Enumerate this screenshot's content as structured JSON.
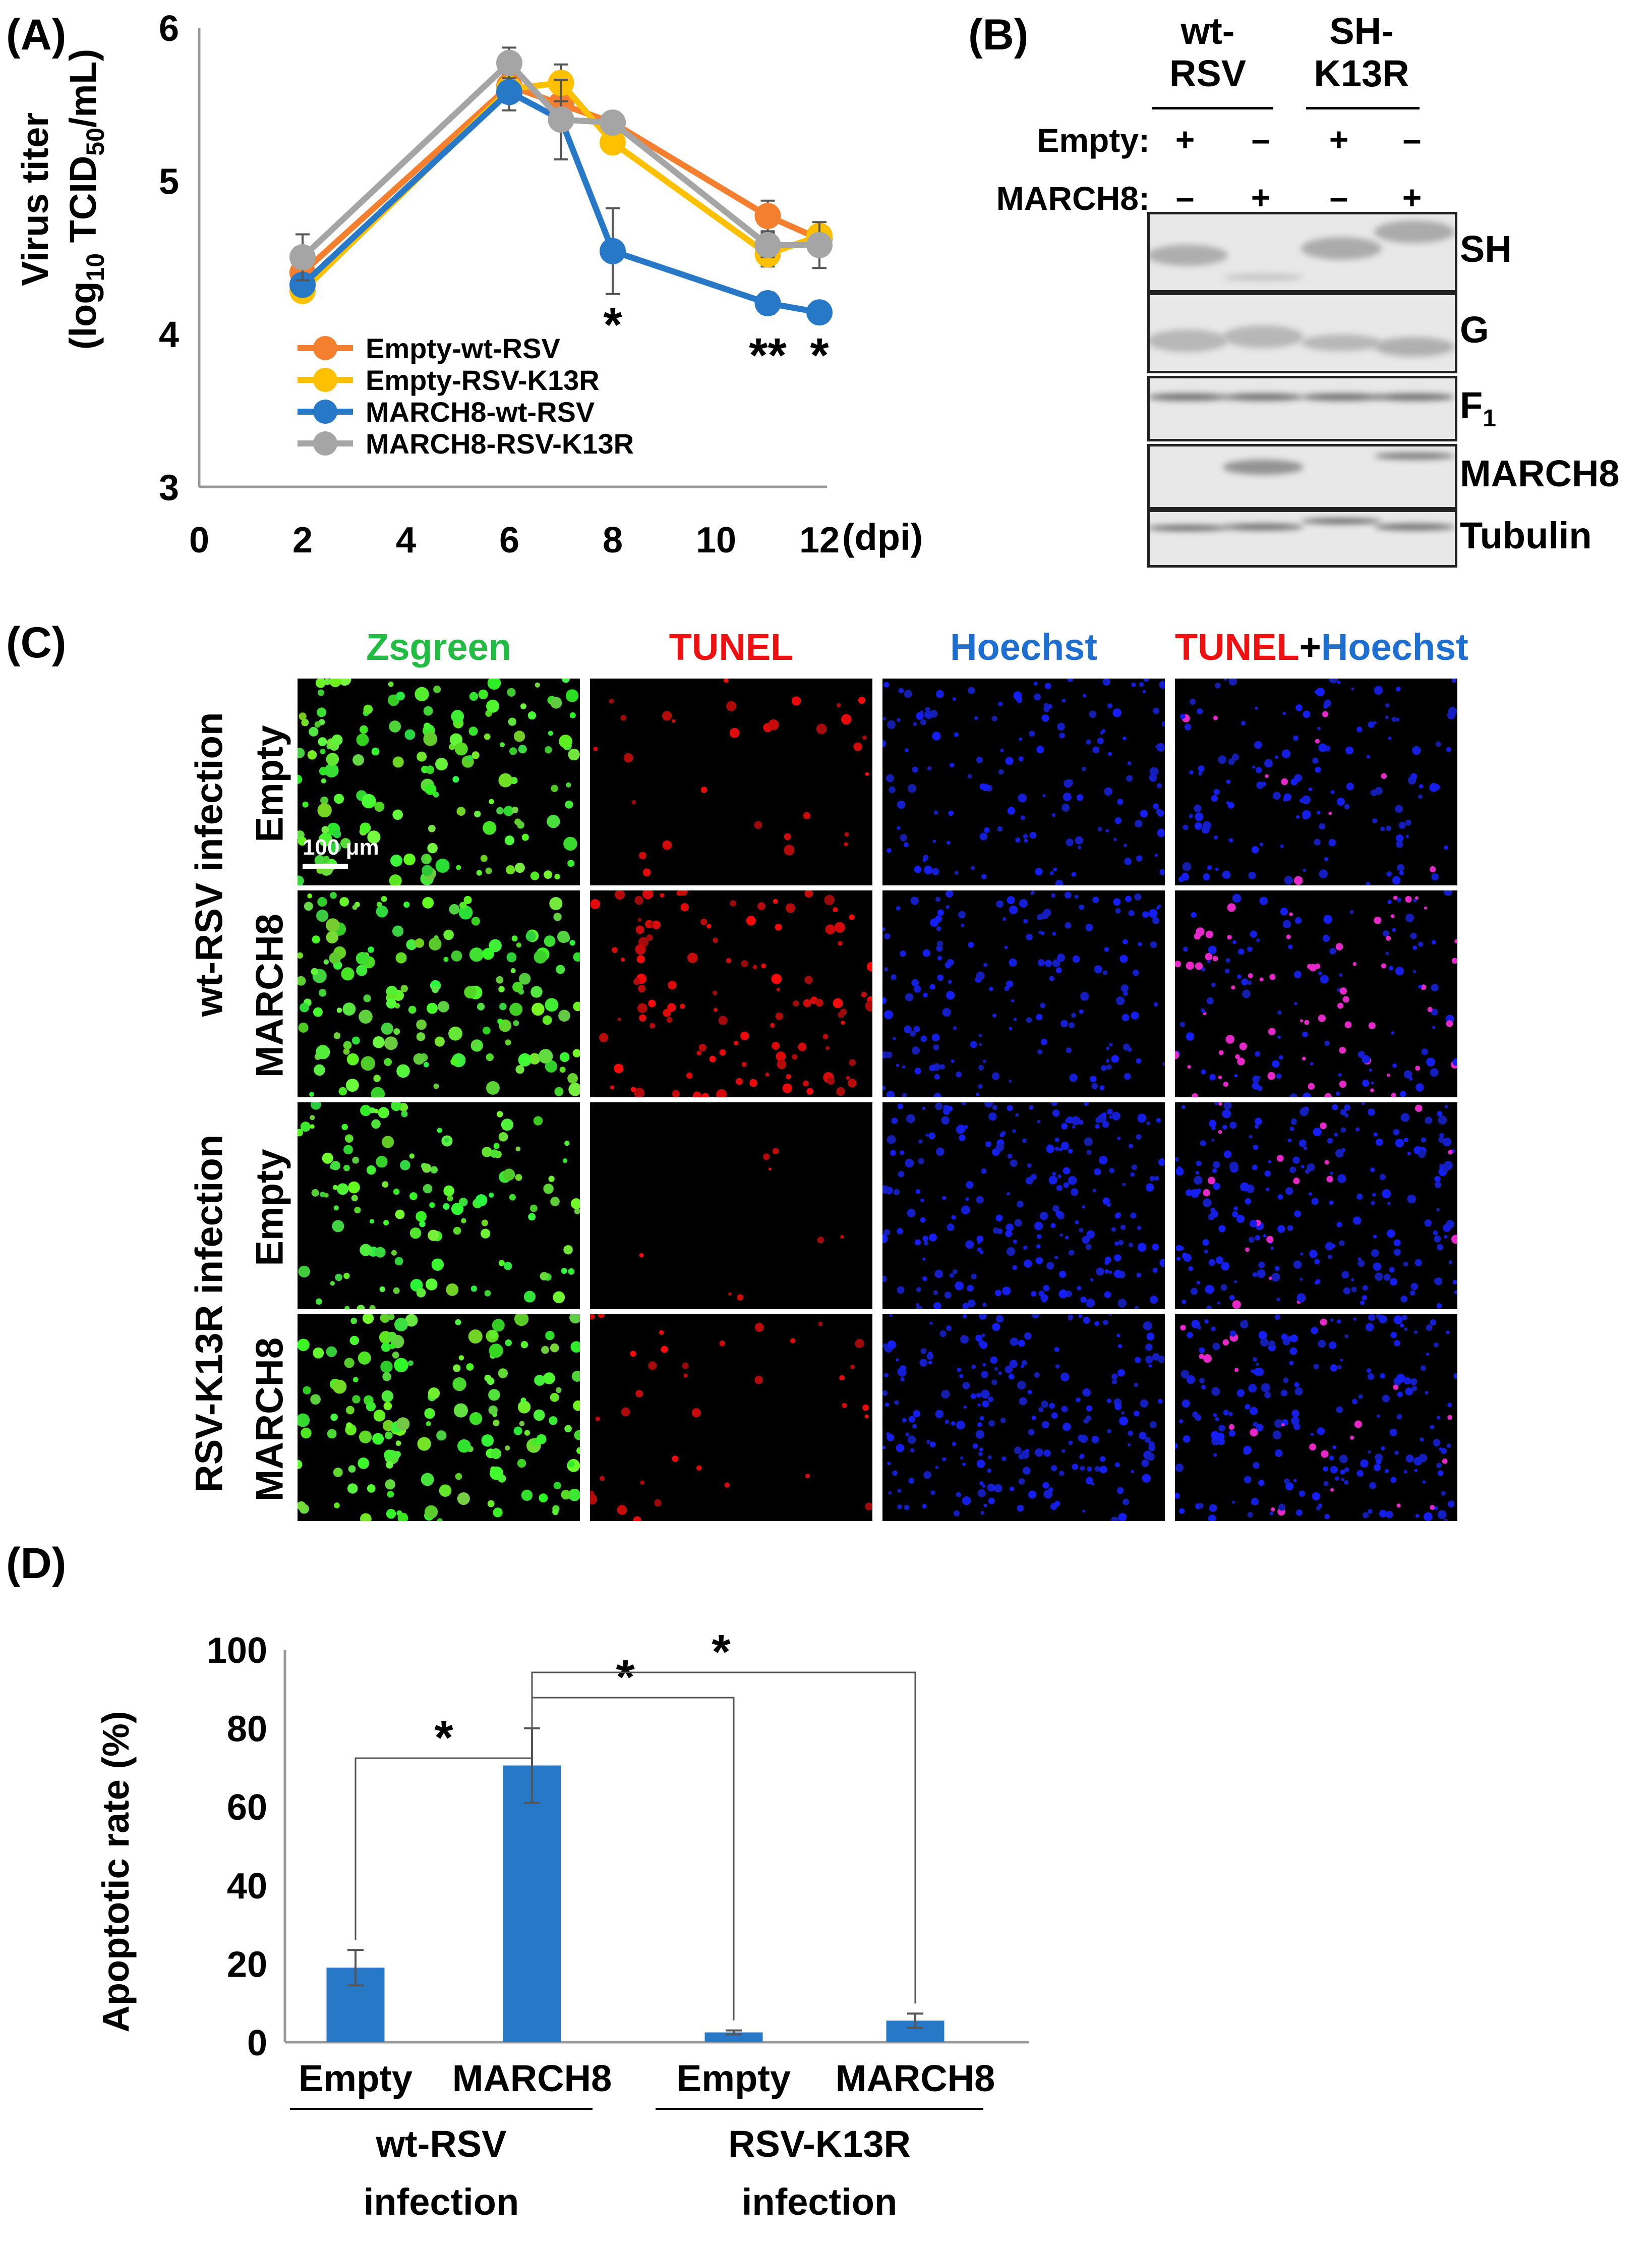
{
  "panel_labels": {
    "a": "(A)",
    "b": "(B)",
    "c": "(C)",
    "d": "(D)"
  },
  "chart_data": [
    {
      "type": "line",
      "panel": "(A)",
      "ylabel_main": "Virus titer",
      "ylabel_unit_prefix": "(log",
      "ylabel_unit_sub": "10",
      "ylabel_unit_suffix": " TCID",
      "ylabel_unit_sub2": "50",
      "ylabel_unit_end": "/mL)",
      "xlabel": "(dpi)",
      "xlim": [
        0,
        12
      ],
      "ylim": [
        3,
        6
      ],
      "xticks": [
        0,
        2,
        4,
        6,
        8,
        10,
        12
      ],
      "yticks": [
        3,
        4,
        5,
        6
      ],
      "grid": false,
      "legend_position": "bottom-left",
      "x": [
        2,
        6,
        7,
        8,
        11,
        12
      ],
      "series": [
        {
          "name": "Empty-wt-RSV",
          "color": "#F4802F",
          "values": [
            4.4,
            5.62,
            5.5,
            5.38,
            4.77,
            4.62
          ],
          "errors": [
            0.05,
            0.06,
            0.05,
            0.05,
            0.1,
            0.05
          ]
        },
        {
          "name": "Empty-RSV-K13R",
          "color": "#FFC000",
          "values": [
            4.28,
            5.6,
            5.64,
            5.25,
            4.52,
            4.64
          ],
          "errors": [
            0.05,
            0.06,
            0.12,
            0.05,
            0.08,
            0.05
          ]
        },
        {
          "name": "MARCH8-wt-RSV",
          "color": "#2878C8",
          "values": [
            4.32,
            5.58,
            5.4,
            4.54,
            4.2,
            4.14
          ],
          "errors": [
            0.05,
            0.12,
            0.26,
            0.28,
            0.07,
            0.04
          ]
        },
        {
          "name": "MARCH8-RSV-K13R",
          "color": "#A5A5A5",
          "values": [
            4.5,
            5.77,
            5.4,
            5.38,
            4.58,
            4.58
          ],
          "errors": [
            0.15,
            0.1,
            0.26,
            0.05,
            0.08,
            0.15
          ]
        }
      ],
      "annotations": [
        {
          "text": "*",
          "x": 8,
          "y": 4.05
        },
        {
          "text": "**",
          "x": 11,
          "y": 3.85
        },
        {
          "text": "*",
          "x": 12,
          "y": 3.85
        }
      ]
    },
    {
      "type": "bar",
      "panel": "(D)",
      "ylabel": "Apoptotic rate (%)",
      "ylim": [
        0,
        100
      ],
      "yticks": [
        0,
        20,
        40,
        60,
        80,
        100
      ],
      "grid": false,
      "categories": [
        "Empty",
        "MARCH8",
        "Empty",
        "MARCH8"
      ],
      "values": [
        19,
        70.5,
        2.5,
        5.5
      ],
      "errors": [
        4.5,
        9.5,
        0.5,
        1.8
      ],
      "color": "#2878C8",
      "groups": [
        {
          "line1": "wt-RSV",
          "line2": "infection"
        },
        {
          "line1": "RSV-K13R",
          "line2": "infection"
        }
      ],
      "significance": [
        {
          "from": 0,
          "to": 1,
          "text": "*"
        },
        {
          "from": 1,
          "to": 2,
          "text": "*"
        },
        {
          "from": 1,
          "to": 3,
          "text": "*"
        }
      ]
    }
  ],
  "blot": {
    "group1_line1": "wt-",
    "group1_line2": "RSV",
    "group2_line1": "SH-",
    "group2_line2": "K13R",
    "row1_label": "Empty:",
    "row2_label": "MARCH8:",
    "empty_signs": [
      "+",
      "–",
      "+",
      "–"
    ],
    "march8_signs": [
      "–",
      "+",
      "–",
      "+"
    ],
    "strips": [
      {
        "label": "SH",
        "sub": ""
      },
      {
        "label": "G",
        "sub": ""
      },
      {
        "label": "F",
        "sub": "1"
      },
      {
        "label": "MARCH8",
        "sub": ""
      },
      {
        "label": "Tubulin",
        "sub": ""
      }
    ]
  },
  "micrographs": {
    "columns": [
      {
        "text": "Zsgreen",
        "color": "#22BB44"
      },
      {
        "text": "TUNEL",
        "color": "#EE1111"
      },
      {
        "text": "Hoechst",
        "color": "#1F6FD0"
      }
    ],
    "merge_part1": "TUNEL",
    "merge_plus": "+",
    "merge_part2": "Hoechst",
    "group1": "wt-RSV infection",
    "group2": "RSV-K13R infection",
    "row_labels": [
      "Empty",
      "MARCH8",
      "Empty",
      "MARCH8"
    ],
    "scale_bar": "100 μm"
  }
}
